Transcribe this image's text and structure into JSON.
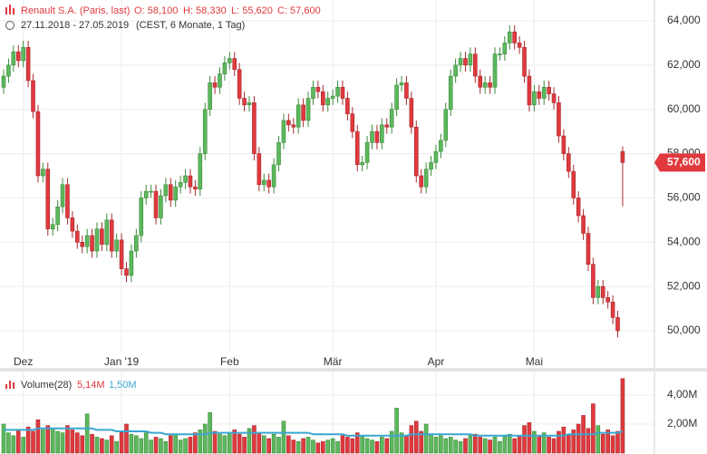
{
  "chart_data": [
    {
      "type": "candlestick",
      "title": "Renault S.A. (Paris, last)",
      "ohlc_labels": [
        "O: 58,100",
        "H: 58,330",
        "L: 55,620",
        "C: 57,600"
      ],
      "subtitle": "27.11.2018 - 27.05.2019",
      "note": "(CEST, 6 Monate, 1 Tag)",
      "up_color": "#5cb85c",
      "down_color": "#e0393e",
      "last_label": "57,600",
      "grid": true,
      "ylim": [
        49.06,
        64.94
      ],
      "yticks": [
        {
          "value": 50,
          "label": "50,000"
        },
        {
          "value": 52,
          "label": "52,000"
        },
        {
          "value": 54,
          "label": "54,000"
        },
        {
          "value": 56,
          "label": "56,000"
        },
        {
          "value": 58,
          "label": "58,000"
        },
        {
          "value": 60,
          "label": "60,000"
        },
        {
          "value": 62,
          "label": "62,000"
        },
        {
          "value": 64,
          "label": "64,000"
        }
      ],
      "categories": [
        null,
        null,
        null,
        null,
        "Dez",
        null,
        null,
        null,
        null,
        null,
        null,
        null,
        null,
        null,
        null,
        null,
        null,
        null,
        null,
        null,
        null,
        null,
        null,
        null,
        "Jan '19",
        null,
        null,
        null,
        null,
        null,
        null,
        null,
        null,
        null,
        null,
        null,
        null,
        null,
        null,
        null,
        null,
        null,
        null,
        null,
        null,
        null,
        "Feb",
        null,
        null,
        null,
        null,
        null,
        null,
        null,
        null,
        null,
        null,
        null,
        null,
        null,
        null,
        null,
        null,
        null,
        null,
        null,
        null,
        "Mär",
        null,
        null,
        null,
        null,
        null,
        null,
        null,
        null,
        null,
        null,
        null,
        null,
        null,
        null,
        null,
        null,
        null,
        null,
        null,
        null,
        "Apr",
        null,
        null,
        null,
        null,
        null,
        null,
        null,
        null,
        null,
        null,
        null,
        null,
        null,
        null,
        null,
        null,
        null,
        null,
        null,
        "Mai",
        null,
        null,
        null,
        null,
        null,
        null,
        null,
        null,
        null,
        null,
        null,
        null,
        null,
        null,
        null,
        null,
        null,
        null
      ],
      "open": [
        61.0,
        61.5,
        62.0,
        62.6,
        62.2,
        62.8,
        61.3,
        59.9,
        57.0,
        57.3,
        54.6,
        54.8,
        55.6,
        56.6,
        55.1,
        54.5,
        54.0,
        53.8,
        54.3,
        53.6,
        54.6,
        53.9,
        55.0,
        53.6,
        54.1,
        52.8,
        52.5,
        53.6,
        54.3,
        56.0,
        56.3,
        56.3,
        55.1,
        56.1,
        56.6,
        55.9,
        56.5,
        56.7,
        57.0,
        56.5,
        56.4,
        58.0,
        60.0,
        61.2,
        61.0,
        61.6,
        62.1,
        62.3,
        61.8,
        60.5,
        60.2,
        60.3,
        58.0,
        56.6,
        56.8,
        56.5,
        57.5,
        58.5,
        59.5,
        59.3,
        59.2,
        60.2,
        59.5,
        60.5,
        61.0,
        60.8,
        60.2,
        60.5,
        60.6,
        61.0,
        60.5,
        59.8,
        59.0,
        57.5,
        57.6,
        58.5,
        59.0,
        58.5,
        59.3,
        59.2,
        60.0,
        61.1,
        61.2,
        60.5,
        59.2,
        57.0,
        56.5,
        57.3,
        57.6,
        58.1,
        58.6,
        60.0,
        61.5,
        62.0,
        62.3,
        62.0,
        62.5,
        61.5,
        61.0,
        61.2,
        61.0,
        62.5,
        62.5,
        63.0,
        63.5,
        63.0,
        62.8,
        61.5,
        60.2,
        60.8,
        60.5,
        61.0,
        60.7,
        60.3,
        58.8,
        58.0,
        57.2,
        56.0,
        55.2,
        54.4,
        53.0,
        51.5,
        52.0,
        51.5,
        51.3,
        50.6,
        58.1
      ],
      "high": [
        61.8,
        62.3,
        62.9,
        62.9,
        63.1,
        63.1,
        61.6,
        60.2,
        57.6,
        57.6,
        55.1,
        55.9,
        56.9,
        56.9,
        55.4,
        54.8,
        54.3,
        54.6,
        54.6,
        54.9,
        54.9,
        55.3,
        55.3,
        54.4,
        54.4,
        53.1,
        53.9,
        54.6,
        56.3,
        56.6,
        56.6,
        56.6,
        56.4,
        56.9,
        56.9,
        56.8,
        57.0,
        57.3,
        57.3,
        56.8,
        58.3,
        60.3,
        61.5,
        61.5,
        61.9,
        62.4,
        62.6,
        62.6,
        62.1,
        60.8,
        60.6,
        60.6,
        58.3,
        57.1,
        57.1,
        57.8,
        58.8,
        59.8,
        59.8,
        59.6,
        60.5,
        60.5,
        60.8,
        61.3,
        61.3,
        61.1,
        60.8,
        60.9,
        61.3,
        61.3,
        60.8,
        60.1,
        59.3,
        57.9,
        58.8,
        59.3,
        59.3,
        59.6,
        59.6,
        60.3,
        61.4,
        61.5,
        61.5,
        60.8,
        59.5,
        57.3,
        57.6,
        57.9,
        58.4,
        58.9,
        60.3,
        61.8,
        62.3,
        62.6,
        62.6,
        62.8,
        62.8,
        61.8,
        61.5,
        61.5,
        62.8,
        62.8,
        63.3,
        63.8,
        63.8,
        63.3,
        63.1,
        61.8,
        61.1,
        61.1,
        61.3,
        61.3,
        61.0,
        60.6,
        59.1,
        58.3,
        57.5,
        56.3,
        55.5,
        54.7,
        53.3,
        52.3,
        52.3,
        51.8,
        51.6,
        50.9,
        58.33
      ],
      "low": [
        60.7,
        61.2,
        61.7,
        61.9,
        61.9,
        61.0,
        59.6,
        56.7,
        56.7,
        54.3,
        54.3,
        54.5,
        55.3,
        54.8,
        54.2,
        53.7,
        53.5,
        53.5,
        53.3,
        53.3,
        53.6,
        53.6,
        53.3,
        53.3,
        52.5,
        52.2,
        52.2,
        53.3,
        54.0,
        55.7,
        56.0,
        54.8,
        54.8,
        55.8,
        55.6,
        55.6,
        56.2,
        56.4,
        56.2,
        56.1,
        56.1,
        57.7,
        59.7,
        60.7,
        60.7,
        61.3,
        61.8,
        61.5,
        60.2,
        59.9,
        59.9,
        57.7,
        56.3,
        56.3,
        56.2,
        56.2,
        57.2,
        58.2,
        59.0,
        58.9,
        58.9,
        59.2,
        59.2,
        60.2,
        60.5,
        59.9,
        59.9,
        60.2,
        60.3,
        60.2,
        59.5,
        58.7,
        57.2,
        57.2,
        57.3,
        58.2,
        58.2,
        58.2,
        58.9,
        58.9,
        59.7,
        60.8,
        60.2,
        58.9,
        56.7,
        56.2,
        56.2,
        57.0,
        57.3,
        57.8,
        58.3,
        59.7,
        61.2,
        61.7,
        61.7,
        61.7,
        61.2,
        60.7,
        60.7,
        60.7,
        60.7,
        62.2,
        62.2,
        62.7,
        62.7,
        62.5,
        61.2,
        59.9,
        59.9,
        60.2,
        60.2,
        60.4,
        60.0,
        58.5,
        57.7,
        56.9,
        55.7,
        54.9,
        54.1,
        52.7,
        51.2,
        51.2,
        51.2,
        51.0,
        50.3,
        49.7,
        55.62
      ],
      "close": [
        61.5,
        62.0,
        62.6,
        62.2,
        62.8,
        61.3,
        59.9,
        57.0,
        57.3,
        54.6,
        54.8,
        55.6,
        56.6,
        55.1,
        54.5,
        54.0,
        53.8,
        54.3,
        53.6,
        54.6,
        53.9,
        55.0,
        53.6,
        54.1,
        52.8,
        52.5,
        53.6,
        54.3,
        56.0,
        56.3,
        56.3,
        55.1,
        56.1,
        56.6,
        55.9,
        56.5,
        56.7,
        57.0,
        56.5,
        56.4,
        58.0,
        60.0,
        61.2,
        61.0,
        61.6,
        62.1,
        62.3,
        61.8,
        60.5,
        60.2,
        60.3,
        58.0,
        56.6,
        56.8,
        56.5,
        57.5,
        58.5,
        59.5,
        59.3,
        59.2,
        60.2,
        59.5,
        60.5,
        61.0,
        60.8,
        60.2,
        60.5,
        60.6,
        61.0,
        60.5,
        59.8,
        59.0,
        57.5,
        57.6,
        58.5,
        59.0,
        58.5,
        59.3,
        59.2,
        60.0,
        61.1,
        61.2,
        60.5,
        59.2,
        57.0,
        56.5,
        57.3,
        57.6,
        58.1,
        58.6,
        60.0,
        61.5,
        62.0,
        62.3,
        62.0,
        62.5,
        61.5,
        61.0,
        61.2,
        61.0,
        62.5,
        62.5,
        63.0,
        63.5,
        63.0,
        62.8,
        61.5,
        60.2,
        60.8,
        60.5,
        61.0,
        60.7,
        60.3,
        58.8,
        58.0,
        57.2,
        56.0,
        55.2,
        54.4,
        53.0,
        51.5,
        52.0,
        51.5,
        51.3,
        50.6,
        50.0,
        57.6
      ]
    },
    {
      "type": "volume",
      "title": "Volume(28)",
      "legend_values": [
        "5,14M",
        "1,50M"
      ],
      "ylim": [
        0,
        5.625
      ],
      "yticks": [
        {
          "value": 2,
          "label": "2,00M"
        },
        {
          "value": 4,
          "label": "4,00M"
        }
      ],
      "series": [
        {
          "name": "Volume",
          "type": "bar",
          "values": [
            2.0,
            1.4,
            1.2,
            1.6,
            1.1,
            1.8,
            1.5,
            2.3,
            1.6,
            1.9,
            1.7,
            1.5,
            1.4,
            1.9,
            1.6,
            1.4,
            1.2,
            2.7,
            1.3,
            1.1,
            1.0,
            0.9,
            1.2,
            0.8,
            1.5,
            2.0,
            1.3,
            1.2,
            1.0,
            1.4,
            0.9,
            1.1,
            1.0,
            0.8,
            1.2,
            1.3,
            0.9,
            1.0,
            1.1,
            1.4,
            1.6,
            2.0,
            2.8,
            1.5,
            1.3,
            1.2,
            1.4,
            1.6,
            1.3,
            1.1,
            1.7,
            1.9,
            1.4,
            1.2,
            1.0,
            1.3,
            1.1,
            2.2,
            1.2,
            0.9,
            0.8,
            1.0,
            1.1,
            0.9,
            0.7,
            0.8,
            0.9,
            1.0,
            0.8,
            1.2,
            1.1,
            1.0,
            1.4,
            1.2,
            1.0,
            0.9,
            0.8,
            1.1,
            1.0,
            1.5,
            3.1,
            1.4,
            1.2,
            1.9,
            2.2,
            1.5,
            2.0,
            1.3,
            1.1,
            1.2,
            1.0,
            1.1,
            0.9,
            0.8,
            1.0,
            1.2,
            1.3,
            1.1,
            1.0,
            0.9,
            1.1,
            0.8,
            1.2,
            1.3,
            1.0,
            1.2,
            1.9,
            2.1,
            1.5,
            1.2,
            1.4,
            1.1,
            1.0,
            1.5,
            1.8,
            1.3,
            1.6,
            2.0,
            2.6,
            1.7,
            3.4,
            1.9,
            1.3,
            1.6,
            1.2,
            1.5,
            5.14
          ]
        },
        {
          "name": "MA",
          "type": "line",
          "color": "#3aa6d0",
          "values": [
            1.6,
            1.6,
            1.6,
            1.6,
            1.6,
            1.6,
            1.6,
            1.7,
            1.7,
            1.7,
            1.7,
            1.7,
            1.7,
            1.7,
            1.7,
            1.7,
            1.7,
            1.7,
            1.7,
            1.6,
            1.6,
            1.6,
            1.6,
            1.5,
            1.5,
            1.5,
            1.5,
            1.5,
            1.5,
            1.5,
            1.4,
            1.4,
            1.4,
            1.3,
            1.3,
            1.3,
            1.3,
            1.3,
            1.3,
            1.3,
            1.3,
            1.3,
            1.4,
            1.4,
            1.4,
            1.4,
            1.4,
            1.4,
            1.4,
            1.4,
            1.4,
            1.4,
            1.4,
            1.4,
            1.4,
            1.4,
            1.4,
            1.4,
            1.4,
            1.4,
            1.4,
            1.4,
            1.4,
            1.3,
            1.3,
            1.3,
            1.3,
            1.3,
            1.3,
            1.3,
            1.2,
            1.2,
            1.2,
            1.2,
            1.2,
            1.2,
            1.2,
            1.2,
            1.2,
            1.2,
            1.2,
            1.2,
            1.2,
            1.3,
            1.3,
            1.3,
            1.3,
            1.3,
            1.3,
            1.3,
            1.3,
            1.3,
            1.3,
            1.3,
            1.3,
            1.3,
            1.2,
            1.2,
            1.2,
            1.2,
            1.2,
            1.2,
            1.2,
            1.2,
            1.2,
            1.2,
            1.2,
            1.2,
            1.2,
            1.2,
            1.2,
            1.2,
            1.2,
            1.2,
            1.2,
            1.3,
            1.3,
            1.3,
            1.3,
            1.3,
            1.3,
            1.4,
            1.4,
            1.4,
            1.4,
            1.4,
            1.5
          ]
        }
      ]
    }
  ]
}
